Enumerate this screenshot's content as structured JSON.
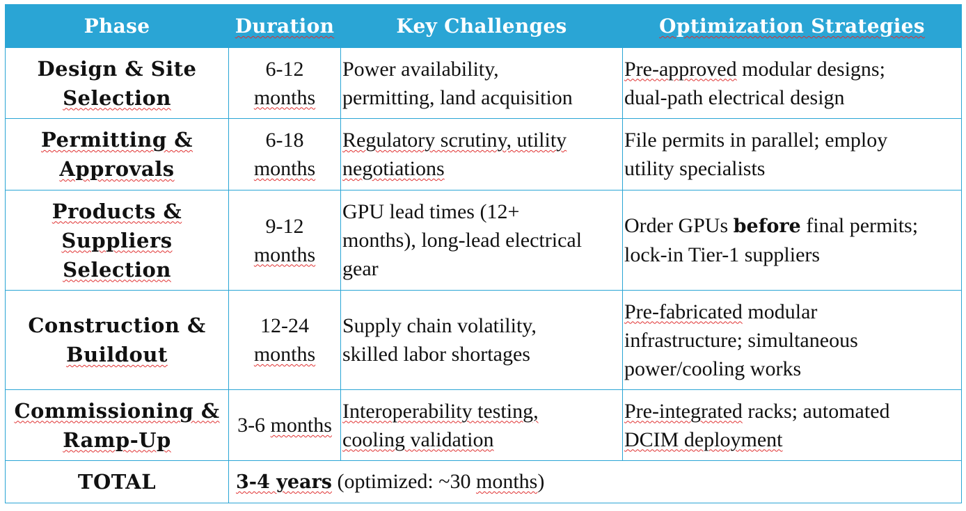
{
  "headers": [
    "Phase",
    "Duration",
    "Key Challenges",
    "Optimization Strategies"
  ],
  "rows": [
    {
      "phase_line1": "Design & Site",
      "phase_line2": "Selection",
      "duration_line1": "6-12",
      "duration_line2": "months",
      "challenges_line1": "Power availability,",
      "challenges_line2": "permitting, land acquisition",
      "strategy_lead": "Pre-approved",
      "strategy_rest": " modular designs;",
      "strategy_line2": "dual-path electrical design"
    },
    {
      "phase_line1": "Permitting &",
      "phase_line2": "Approvals",
      "duration_line1": "6-18",
      "duration_line2": "months",
      "challenges_line1": "Regulatory scrutiny, utility",
      "challenges_line2": "negotiations",
      "strategy_line1": "File permits in parallel; employ",
      "strategy_line2": "utility specialists"
    },
    {
      "phase_line1": "Products &",
      "phase_line2": "Suppliers",
      "phase_line3": "Selection",
      "duration_line1": "9-12",
      "duration_line2": "months",
      "challenges_line1": "GPU lead times (12+",
      "challenges_line2": "months), long-lead electrical",
      "challenges_line3": "gear",
      "strategy_pre": "Order GPUs ",
      "strategy_bold": "before",
      "strategy_post": " final permits;",
      "strategy_line2": "lock-in Tier-1 suppliers"
    },
    {
      "phase_line1": "Construction &",
      "phase_line2": "Buildout",
      "duration_line1": "12-24",
      "duration_line2": "months",
      "challenges_line1": "Supply chain volatility,",
      "challenges_line2": "skilled labor shortages",
      "strategy_lead": "Pre-fabricated",
      "strategy_rest": " modular",
      "strategy_line2": "infrastructure; simultaneous",
      "strategy_line3": "power/cooling works"
    },
    {
      "phase_line1": "Commissioning &",
      "phase_line2": "Ramp-Up",
      "duration_pre": "3-6 ",
      "duration_sq": "months",
      "challenges_line1": "Interoperability testing,",
      "challenges_line2": "cooling validation",
      "strategy_lead": "Pre-integrated",
      "strategy_rest": " racks; automated",
      "strategy_line2": "DCIM deployment"
    }
  ],
  "total": {
    "label": "TOTAL",
    "bold_value": "3-4 years",
    "note_pre": " (optimized: ~30 ",
    "note_sq": "months",
    "note_post": ")"
  },
  "colors": {
    "header_bg": "#2aa5d5",
    "border": "#2aa5d5",
    "spellcheck_underline": "#e03030"
  }
}
